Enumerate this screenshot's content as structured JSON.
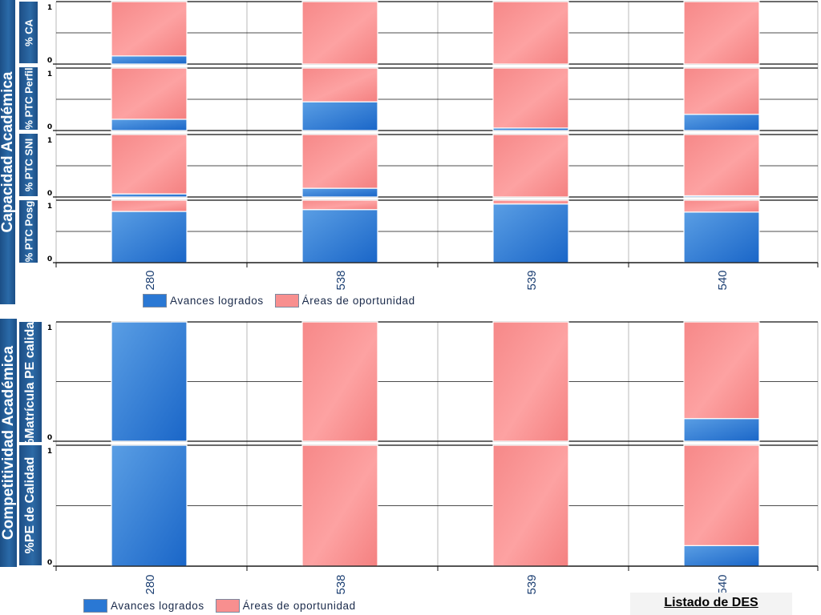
{
  "sections": {
    "capacidad": "Capacidad Académica",
    "competitividad": "Competitividad Académica"
  },
  "legend": {
    "avances": "Avances logrados",
    "areas": "Áreas de oportunidad"
  },
  "link": {
    "label": "Listado de DES"
  },
  "colors": {
    "avances": "#2a78d4",
    "areas": "#f88f8f"
  },
  "chart_data": [
    {
      "type": "bar",
      "stacked": true,
      "ylabel": "% CA",
      "ylim": [
        0,
        1
      ],
      "yticks": [
        "1",
        "0"
      ],
      "categories": [
        "280",
        "538",
        "539",
        "540"
      ],
      "series": [
        {
          "name": "Avances logrados",
          "values": [
            0.13,
            0.0,
            0.0,
            0.0
          ]
        },
        {
          "name": "Áreas de oportunidad",
          "values": [
            0.87,
            1.0,
            1.0,
            1.0
          ]
        }
      ]
    },
    {
      "type": "bar",
      "stacked": true,
      "ylabel": "% PTC Perfil",
      "ylim": [
        0,
        1
      ],
      "yticks": [
        "1",
        "0"
      ],
      "categories": [
        "280",
        "538",
        "539",
        "540"
      ],
      "series": [
        {
          "name": "Avances logrados",
          "values": [
            0.18,
            0.46,
            0.04,
            0.26
          ]
        },
        {
          "name": "Áreas de oportunidad",
          "values": [
            0.82,
            0.54,
            0.96,
            0.74
          ]
        }
      ]
    },
    {
      "type": "bar",
      "stacked": true,
      "ylabel": "% PTC SNI",
      "ylim": [
        0,
        1
      ],
      "yticks": [
        "1",
        "0"
      ],
      "categories": [
        "280",
        "538",
        "539",
        "540"
      ],
      "series": [
        {
          "name": "Avances logrados",
          "values": [
            0.05,
            0.14,
            0.0,
            0.02
          ]
        },
        {
          "name": "Áreas de oportunidad",
          "values": [
            0.95,
            0.86,
            1.0,
            0.98
          ]
        }
      ]
    },
    {
      "type": "bar",
      "stacked": true,
      "ylabel": "% PTC Posg",
      "ylim": [
        0,
        1
      ],
      "yticks": [
        "1",
        "0"
      ],
      "categories": [
        "280",
        "538",
        "539",
        "540"
      ],
      "series": [
        {
          "name": "Avances logrados",
          "values": [
            0.82,
            0.85,
            0.94,
            0.81
          ]
        },
        {
          "name": "Áreas de oportunidad",
          "values": [
            0.18,
            0.15,
            0.06,
            0.19
          ]
        }
      ]
    },
    {
      "type": "bar",
      "stacked": true,
      "ylabel": "%Matrícula PE calidad",
      "ylim": [
        0,
        1
      ],
      "yticks": [
        "1",
        "0"
      ],
      "categories": [
        "280",
        "538",
        "539",
        "540"
      ],
      "series": [
        {
          "name": "Avances logrados",
          "values": [
            1.0,
            0.0,
            0.0,
            0.19
          ]
        },
        {
          "name": "Áreas de oportunidad",
          "values": [
            0.0,
            1.0,
            1.0,
            0.81
          ]
        }
      ]
    },
    {
      "type": "bar",
      "stacked": true,
      "ylabel": "%PE de Calidad",
      "ylim": [
        0,
        1
      ],
      "yticks": [
        "1",
        "0"
      ],
      "categories": [
        "280",
        "538",
        "539",
        "540"
      ],
      "series": [
        {
          "name": "Avances logrados",
          "values": [
            1.0,
            0.0,
            0.0,
            0.17
          ]
        },
        {
          "name": "Áreas de oportunidad",
          "values": [
            0.0,
            1.0,
            1.0,
            0.83
          ]
        }
      ]
    }
  ]
}
